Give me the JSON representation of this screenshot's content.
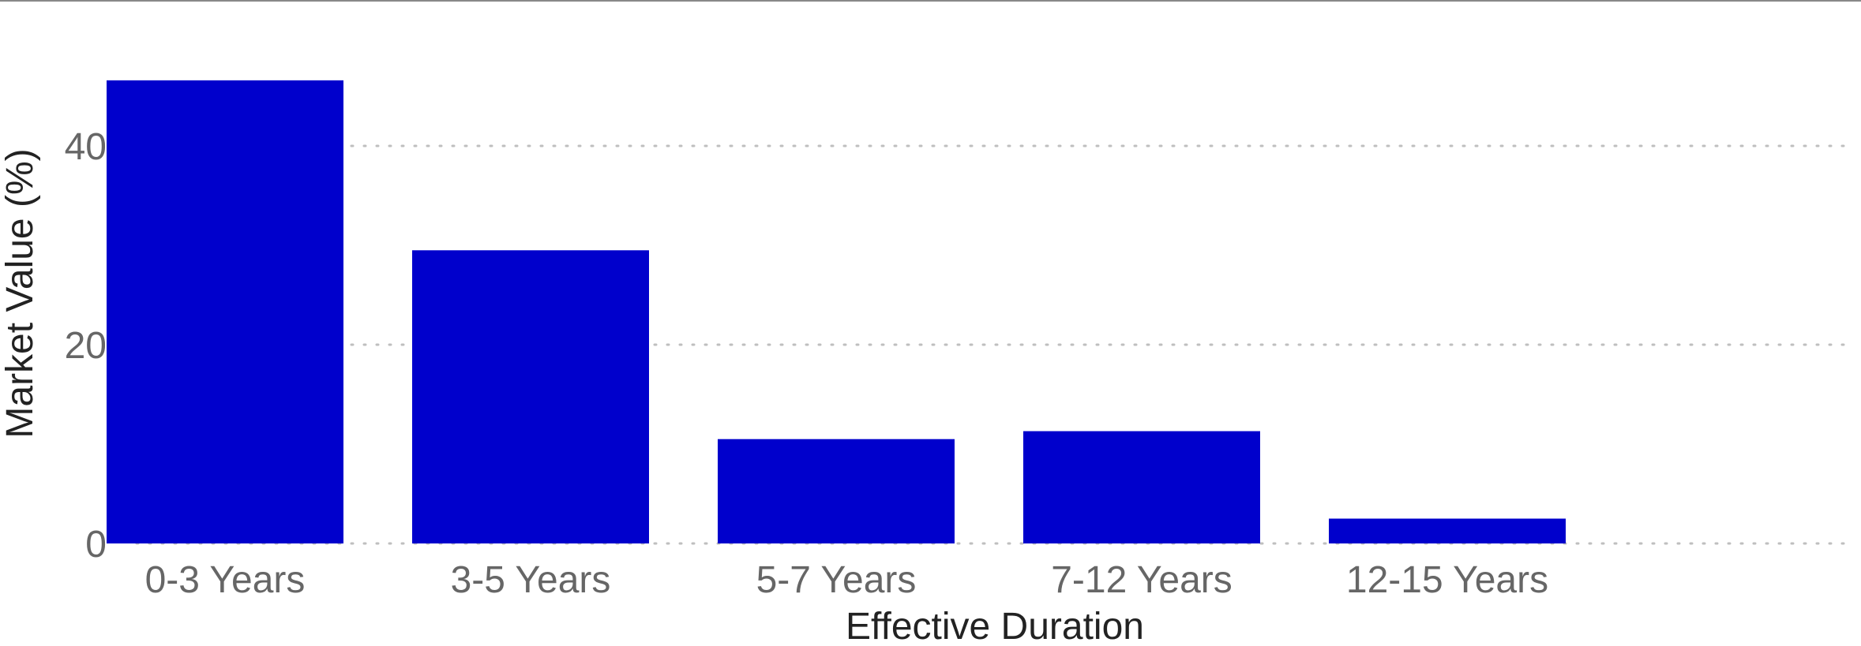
{
  "colors": {
    "bar": "#0000CC",
    "grid": "#BFBFBF",
    "tick_text": "#666666",
    "axis_text": "#222222",
    "top_rule": "#888888"
  },
  "chart_data": {
    "type": "bar",
    "title": "",
    "xlabel": "Effective Duration",
    "ylabel": "Market Value (%)",
    "categories": [
      "0-3 Years",
      "3-5 Years",
      "5-7 Years",
      "7-12 Years",
      "12-15 Years"
    ],
    "values": [
      46.6,
      29.5,
      10.5,
      11.3,
      2.5
    ],
    "yticks": [
      0,
      20,
      40
    ],
    "ylim": [
      0,
      50
    ],
    "grid": "horizontal dotted",
    "legend": "none"
  }
}
